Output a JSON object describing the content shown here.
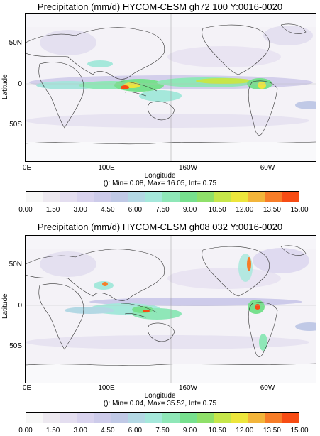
{
  "colorbar": {
    "colors": [
      "#f7f7f7",
      "#ede9f0",
      "#e4def0",
      "#d9d3ee",
      "#cdcbea",
      "#c0c9e6",
      "#b3d8e4",
      "#a5e8db",
      "#8fe7b8",
      "#77e08e",
      "#8fe06a",
      "#c6e64a",
      "#ede63c",
      "#f3b53a",
      "#f77d28",
      "#f74c14"
    ],
    "labels": [
      "0.00",
      "1.50",
      "3.00",
      "4.50",
      "6.00",
      "7.50",
      "9.00",
      "10.50",
      "12.00",
      "13.50",
      "15.00"
    ]
  },
  "axes": {
    "ylabel": "Latitude",
    "xlabel": "Longitude",
    "yticks": [
      "50N",
      "0",
      "50S"
    ],
    "xticks": [
      "0E",
      "100E",
      "160W",
      "60W"
    ]
  },
  "chart_data": [
    {
      "type": "heatmap",
      "title": "Precipitation (mm/d) HYCOM-CESM gh72 100 Y:0016-0020",
      "stats": "(): Min= 0.08, Max= 16.05, Int= 0.75",
      "xlabel": "Longitude",
      "ylabel": "Latitude",
      "xticks": [
        "0E",
        "100E",
        "160W",
        "60W"
      ],
      "yticks": [
        "50N",
        "0",
        "50S"
      ],
      "levels": [
        0.0,
        1.5,
        3.0,
        4.5,
        6.0,
        7.5,
        9.0,
        10.5,
        12.0,
        13.5,
        15.0
      ],
      "min": 0.08,
      "max": 16.05,
      "interval": 0.75
    },
    {
      "type": "heatmap",
      "title": "Precipitation (mm/d) HYCOM-CESM gh08 032 Y:0016-0020",
      "stats": "(): Min= 0.04, Max= 35.52, Int= 0.75",
      "xlabel": "Longitude",
      "ylabel": "Latitude",
      "xticks": [
        "0E",
        "100E",
        "160W",
        "60W"
      ],
      "yticks": [
        "50N",
        "0",
        "50S"
      ],
      "levels": [
        0.0,
        1.5,
        3.0,
        4.5,
        6.0,
        7.5,
        9.0,
        10.5,
        12.0,
        13.5,
        15.0
      ],
      "min": 0.04,
      "max": 35.52,
      "interval": 0.75
    }
  ]
}
